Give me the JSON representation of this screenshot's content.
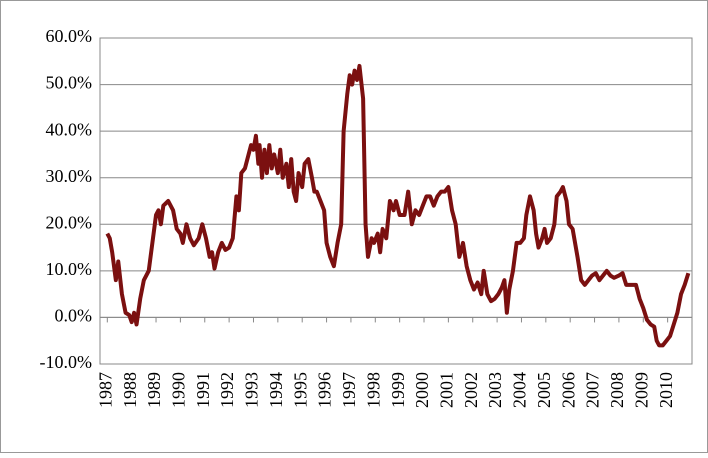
{
  "chart_data": {
    "type": "line",
    "x": [
      1987.0,
      1987.1,
      1987.2,
      1987.35,
      1987.45,
      1987.6,
      1987.75,
      1987.9,
      1988.0,
      1988.1,
      1988.2,
      1988.35,
      1988.5,
      1988.7,
      1988.85,
      1989.0,
      1989.1,
      1989.2,
      1989.3,
      1989.5,
      1989.7,
      1989.85,
      1990.0,
      1990.1,
      1990.25,
      1990.4,
      1990.55,
      1990.75,
      1990.9,
      1991.05,
      1991.2,
      1991.3,
      1991.4,
      1991.55,
      1991.7,
      1991.85,
      1992.0,
      1992.15,
      1992.3,
      1992.4,
      1992.5,
      1992.65,
      1992.8,
      1992.9,
      1993.0,
      1993.1,
      1993.2,
      1993.25,
      1993.35,
      1993.45,
      1993.55,
      1993.65,
      1993.75,
      1993.85,
      1994.0,
      1994.1,
      1994.2,
      1994.35,
      1994.45,
      1994.55,
      1994.65,
      1994.75,
      1994.85,
      1995.0,
      1995.1,
      1995.25,
      1995.4,
      1995.5,
      1995.6,
      1995.75,
      1995.9,
      1996.0,
      1996.15,
      1996.3,
      1996.45,
      1996.6,
      1996.7,
      1996.85,
      1996.95,
      1997.05,
      1997.15,
      1997.25,
      1997.35,
      1997.5,
      1997.6,
      1997.7,
      1997.85,
      1997.95,
      1998.1,
      1998.2,
      1998.3,
      1998.45,
      1998.6,
      1998.75,
      1998.85,
      1999.0,
      1999.2,
      1999.35,
      1999.5,
      1999.65,
      1999.8,
      1999.95,
      2000.1,
      2000.25,
      2000.4,
      2000.55,
      2000.7,
      2000.85,
      2001.0,
      2001.15,
      2001.3,
      2001.45,
      2001.6,
      2001.75,
      2001.9,
      2002.05,
      2002.2,
      2002.35,
      2002.45,
      2002.6,
      2002.75,
      2002.9,
      2003.05,
      2003.2,
      2003.3,
      2003.4,
      2003.5,
      2003.65,
      2003.8,
      2003.95,
      2004.1,
      2004.2,
      2004.35,
      2004.5,
      2004.6,
      2004.7,
      2004.85,
      2004.95,
      2005.05,
      2005.2,
      2005.35,
      2005.45,
      2005.6,
      2005.7,
      2005.85,
      2005.95,
      2006.1,
      2006.3,
      2006.45,
      2006.6,
      2006.75,
      2006.9,
      2007.05,
      2007.2,
      2007.35,
      2007.5,
      2007.65,
      2007.8,
      2008.0,
      2008.15,
      2008.3,
      2008.5,
      2008.7,
      2008.85,
      2009.0,
      2009.15,
      2009.3,
      2009.45,
      2009.55,
      2009.65,
      2009.8,
      2009.95,
      2010.1,
      2010.25,
      2010.4,
      2010.55,
      2010.7,
      2010.85
    ],
    "series": [
      {
        "color": "#7b1010",
        "values": [
          18,
          17,
          14,
          8,
          12,
          5,
          1,
          0.5,
          -1,
          1,
          -1.5,
          4,
          8,
          10,
          16,
          22,
          23,
          20,
          24,
          25,
          23,
          19,
          18,
          16,
          20,
          17,
          15.5,
          17,
          20,
          17,
          13,
          14,
          10.5,
          14,
          16,
          14.5,
          15,
          17,
          26,
          23,
          31,
          32,
          35,
          37,
          36,
          39,
          33,
          37,
          30,
          36,
          31,
          37,
          32,
          35,
          31,
          36,
          30,
          33,
          28,
          34,
          27,
          25,
          31,
          28,
          33,
          34,
          30,
          27,
          27,
          25,
          23,
          16,
          13,
          11,
          16,
          20,
          40,
          48,
          52,
          50,
          53,
          51,
          54,
          47,
          20,
          13,
          17,
          16,
          18,
          14,
          19,
          17,
          25,
          23,
          25,
          22,
          22,
          27,
          20,
          23,
          22,
          24,
          26,
          26,
          24,
          26,
          27,
          27,
          28,
          23,
          20,
          13,
          16,
          11,
          8,
          6,
          7.5,
          5,
          10,
          5,
          3.5,
          4,
          5,
          6.5,
          8,
          1,
          6,
          10,
          16,
          16,
          17,
          22,
          26,
          23,
          18,
          15,
          17,
          19,
          16,
          17,
          20,
          26,
          27,
          28,
          25,
          20,
          19,
          13,
          8,
          7,
          8,
          9,
          9.5,
          8,
          9,
          10,
          9,
          8.5,
          9,
          9.5,
          7,
          7,
          7,
          4,
          2,
          -0.5,
          -1.5,
          -2,
          -5,
          -6,
          -6,
          -5,
          -4,
          -1.5,
          1,
          5,
          7,
          9.5
        ]
      }
    ],
    "xlim": [
      1986.7,
      2011.0
    ],
    "xticks": [
      1987,
      1988,
      1989,
      1990,
      1991,
      1992,
      1993,
      1994,
      1995,
      1996,
      1997,
      1998,
      1999,
      2000,
      2001,
      2002,
      2003,
      2004,
      2005,
      2006,
      2007,
      2008,
      2009,
      2010
    ],
    "ylim": [
      -10,
      60
    ],
    "yticks": [
      {
        "value": -10,
        "label": "-10.0%"
      },
      {
        "value": 0,
        "label": "0.0%"
      },
      {
        "value": 10,
        "label": "10.0%"
      },
      {
        "value": 20,
        "label": "20.0%"
      },
      {
        "value": 30,
        "label": "30.0%"
      },
      {
        "value": 40,
        "label": "40.0%"
      },
      {
        "value": 50,
        "label": "50.0%"
      },
      {
        "value": 60,
        "label": "60.0%"
      }
    ],
    "grid": true
  }
}
